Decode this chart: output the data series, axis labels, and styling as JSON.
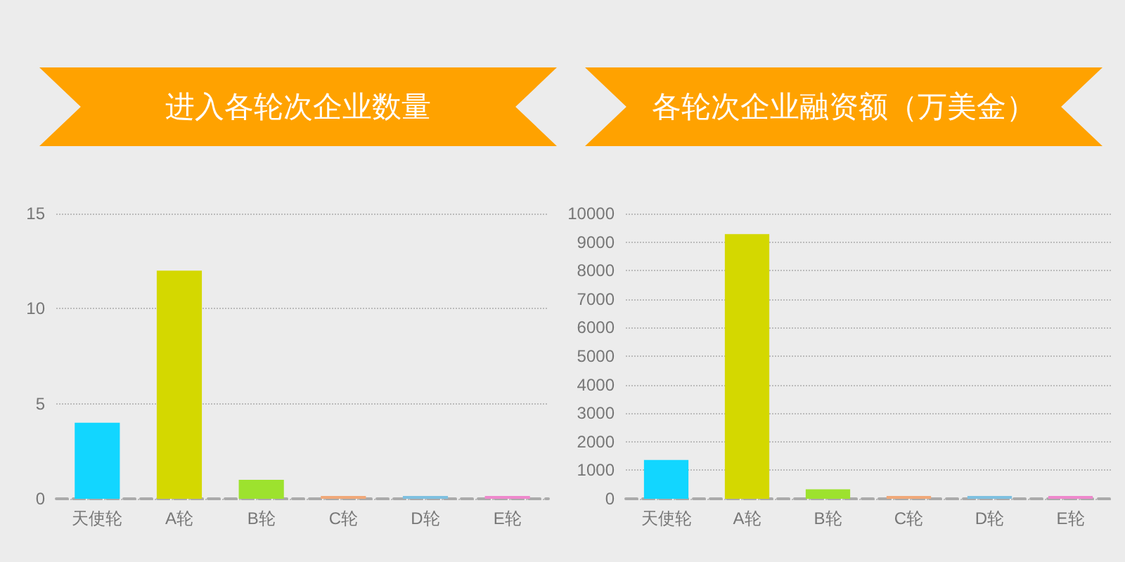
{
  "chart_data": [
    {
      "type": "bar",
      "title": "进入各轮次企业数量",
      "categories": [
        "天使轮",
        "A轮",
        "B轮",
        "C轮",
        "D轮",
        "E轮"
      ],
      "values": [
        4,
        12,
        1,
        0,
        0,
        0
      ],
      "colors": [
        "#12d6ff",
        "#d4d800",
        "#9de22e",
        "#f0a878",
        "#7ec0e0",
        "#ee88cc"
      ],
      "ylim": [
        0,
        15
      ],
      "yticks": [
        0,
        5,
        10,
        15
      ],
      "grid": "y"
    },
    {
      "type": "bar",
      "title": "各轮次企业融资额（万美金）",
      "categories": [
        "天使轮",
        "A轮",
        "B轮",
        "C轮",
        "D轮",
        "E轮"
      ],
      "values": [
        1360,
        9280,
        330,
        0,
        0,
        0
      ],
      "colors": [
        "#12d6ff",
        "#d4d800",
        "#9de22e",
        "#f0a878",
        "#7ec0e0",
        "#ee88cc"
      ],
      "ylim": [
        0,
        10000
      ],
      "yticks": [
        0,
        1000,
        2000,
        3000,
        4000,
        5000,
        6000,
        7000,
        8000,
        9000,
        10000
      ],
      "grid": "y"
    }
  ]
}
